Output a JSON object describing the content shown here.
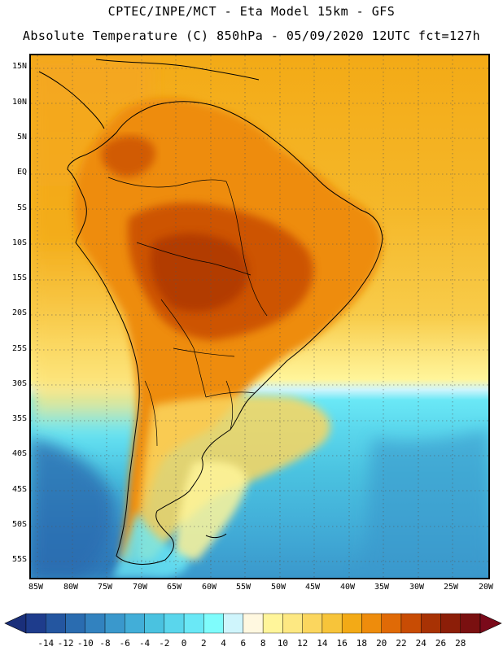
{
  "header": {
    "title_line1": "CPTEC/INPE/MCT -  Eta Model 15km - GFS",
    "title_line2": "Absolute Temperature (C) 850hPa - 05/09/2020 12UTC fct=127h"
  },
  "map": {
    "lat_labels": [
      "15N",
      "10N",
      "5N",
      "EQ",
      "5S",
      "10S",
      "15S",
      "20S",
      "25S",
      "30S",
      "35S",
      "40S",
      "45S",
      "50S",
      "55S"
    ],
    "lon_labels": [
      "85W",
      "80W",
      "75W",
      "70W",
      "65W",
      "60W",
      "55W",
      "50W",
      "45W",
      "40W",
      "35W",
      "30W",
      "25W",
      "20W"
    ],
    "grid": "dotted",
    "ocean_colors": {
      "north_atlantic": "#f5a623",
      "deep_south": "#3aa0d0"
    }
  },
  "legend": {
    "labels": [
      "-14",
      "-12",
      "-10",
      "-8",
      "-6",
      "-4",
      "-2",
      "0",
      "2",
      "4",
      "6",
      "8",
      "10",
      "12",
      "14",
      "16",
      "18",
      "20",
      "22",
      "24",
      "26",
      "28"
    ],
    "colors": [
      "#1e3c8c",
      "#2456a0",
      "#2a6cb0",
      "#3282bf",
      "#3a98cc",
      "#42aed8",
      "#4ac2e0",
      "#5ad6ec",
      "#6ae8f6",
      "#7ffcfc",
      "#cff5fc",
      "#fff8e0",
      "#fff59a",
      "#fde882",
      "#fbd65e",
      "#f7c43a",
      "#f3aa16",
      "#ee8c0c",
      "#e06a06",
      "#c84c04",
      "#a83204",
      "#8c1e08",
      "#7a1010"
    ],
    "arrow_left": "#1a2f7a",
    "arrow_right": "#7a0a1a"
  }
}
